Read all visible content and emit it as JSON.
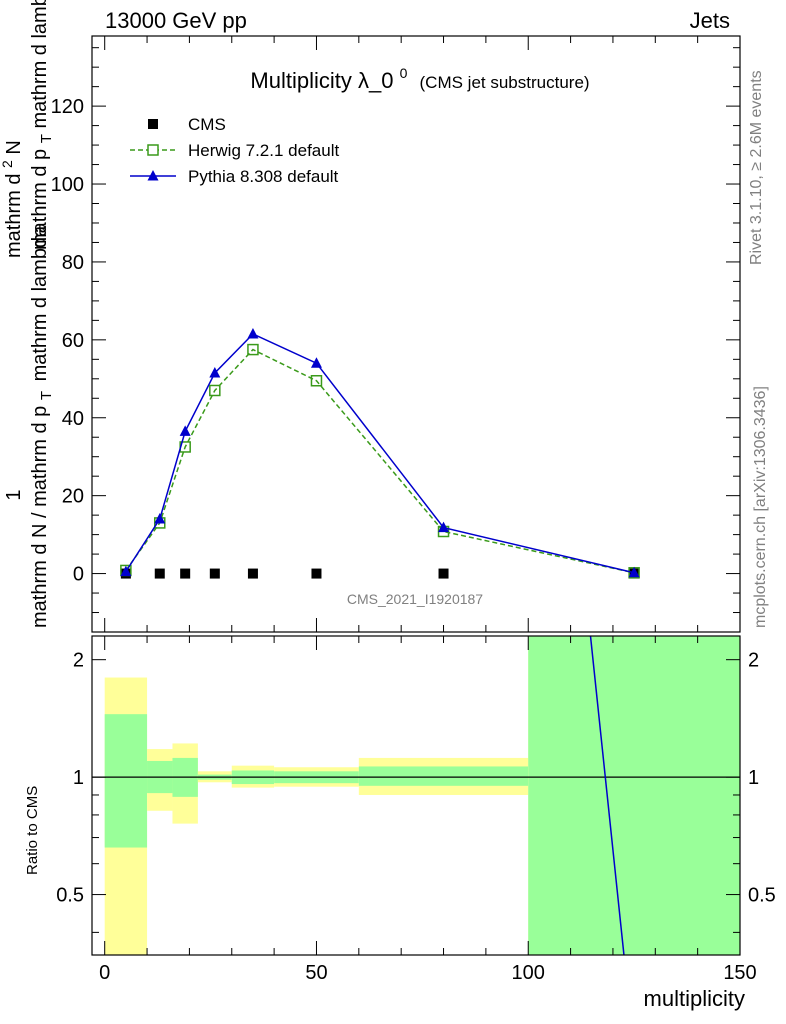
{
  "header": {
    "left": "13000 GeV pp",
    "right": "Jets"
  },
  "side_text": {
    "version": "Rivet 3.1.10, ≥ 2.6M events",
    "source": "mcplots.cern.ch [arXiv:1306.3436]"
  },
  "watermark": "CMS_2021_I1920187",
  "chart_data": [
    {
      "type": "line",
      "title": "Multiplicity λ_0",
      "title_sup": "0",
      "subtitle": "(CMS jet substructure)",
      "ylabel_left": "1",
      "ylabel_main": "mathrm d N / mathrm d p",
      "ylabel_main_sub": "T",
      "ylabel_main_tail": "mathrm d lambda",
      "ylabel_num": "mathrm d",
      "ylabel_num_sup": "2",
      "ylabel_num_tail": "N",
      "ylabel_den": "mathrm d p",
      "ylabel_den_sub": "T",
      "ylabel_den_tail": " mathrm d lambda",
      "xlim": [
        -3,
        150
      ],
      "ylim": [
        -15,
        138
      ],
      "yticks": [
        0,
        20,
        40,
        60,
        80,
        100,
        120
      ],
      "ytick_labels": [
        "0",
        "20",
        "40",
        "60",
        "80",
        "100",
        "120"
      ],
      "legend_position": "top-left",
      "series": [
        {
          "name": "CMS",
          "color": "#000000",
          "marker": "square",
          "x": [
            5,
            13,
            19,
            26,
            35,
            50,
            80,
            125
          ],
          "y": [
            0,
            0,
            0,
            0,
            0,
            0,
            0,
            0
          ]
        },
        {
          "name": "Herwig 7.2.1 default",
          "color": "#3a9a1a",
          "marker": "open-square",
          "dash": true,
          "x": [
            5,
            13,
            19,
            26,
            35,
            50,
            80,
            125
          ],
          "y": [
            0.8,
            13.0,
            32.5,
            47.0,
            57.5,
            49.5,
            10.8,
            0.2
          ]
        },
        {
          "name": "Pythia 8.308 default",
          "color": "#0000cc",
          "marker": "triangle",
          "x": [
            5,
            13,
            19,
            26,
            35,
            50,
            80,
            125
          ],
          "y": [
            0.5,
            14.0,
            36.5,
            51.5,
            61.5,
            54.0,
            11.8,
            0.2
          ]
        }
      ]
    },
    {
      "type": "area",
      "ylabel": "Ratio to CMS",
      "xlabel": "multiplicity",
      "xlim": [
        -3,
        150
      ],
      "ylim": [
        0.35,
        2.3
      ],
      "log_y": true,
      "xticks": [
        0,
        50,
        100,
        150
      ],
      "xtick_labels": [
        "0",
        "50",
        "100",
        "150"
      ],
      "yticks": [
        0.5,
        1,
        2
      ],
      "ytick_labels": [
        "0.5",
        "1",
        "2"
      ],
      "bands": [
        {
          "x0": 0,
          "x1": 10,
          "inner": [
            0.66,
            1.45
          ],
          "outer": [
            0.3,
            1.8
          ]
        },
        {
          "x0": 10,
          "x1": 16,
          "inner": [
            0.91,
            1.1
          ],
          "outer": [
            0.82,
            1.18
          ]
        },
        {
          "x0": 16,
          "x1": 22,
          "inner": [
            0.89,
            1.12
          ],
          "outer": [
            0.76,
            1.22
          ]
        },
        {
          "x0": 22,
          "x1": 30,
          "inner": [
            0.985,
            1.015
          ],
          "outer": [
            0.97,
            1.035
          ]
        },
        {
          "x0": 30,
          "x1": 40,
          "inner": [
            0.96,
            1.04
          ],
          "outer": [
            0.94,
            1.07
          ]
        },
        {
          "x0": 40,
          "x1": 60,
          "inner": [
            0.965,
            1.035
          ],
          "outer": [
            0.945,
            1.06
          ]
        },
        {
          "x0": 60,
          "x1": 100,
          "inner": [
            0.95,
            1.065
          ],
          "outer": [
            0.9,
            1.12
          ]
        },
        {
          "x0": 100,
          "x1": 150,
          "inner": [
            0.3,
            2.5
          ],
          "outer": [
            0.3,
            2.5
          ]
        }
      ],
      "pythia_line": {
        "x": [
          114.7,
          122.6
        ],
        "y": [
          2.5,
          0.35
        ],
        "color": "#0000cc"
      }
    }
  ]
}
